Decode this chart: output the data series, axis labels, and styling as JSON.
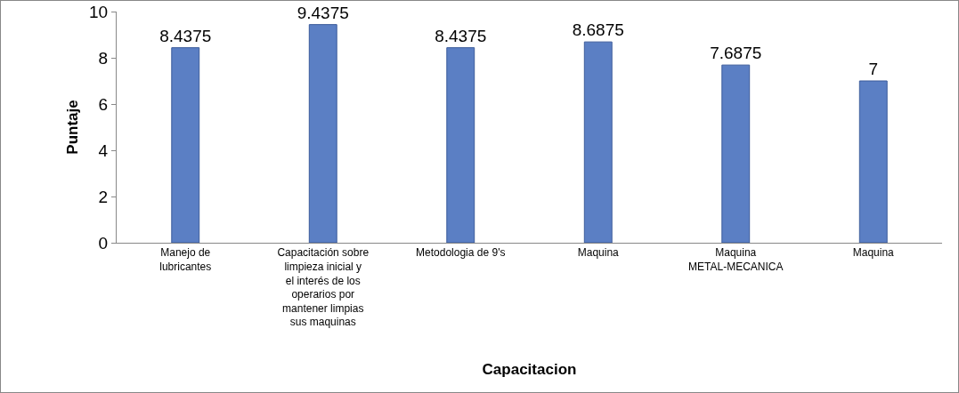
{
  "chart_data": {
    "type": "bar",
    "xlabel": "Capacitacion",
    "ylabel": "Puntaje",
    "categories": [
      "Manejo de lubricantes",
      "Capacitación sobre limpieza inicial y el interés de los operarios por mantener limpias sus maquinas",
      "Metodologia de 9's",
      "Maquina",
      "Maquina METAL-MECANICA",
      "Maquina"
    ],
    "values": [
      8.4375,
      9.4375,
      8.4375,
      8.6875,
      7.6875,
      7
    ],
    "color": "#5b7fc4",
    "ylim": [
      0,
      10
    ],
    "yticks": [
      0,
      2,
      4,
      6,
      8,
      10
    ],
    "grid": false,
    "data_labels": true
  }
}
